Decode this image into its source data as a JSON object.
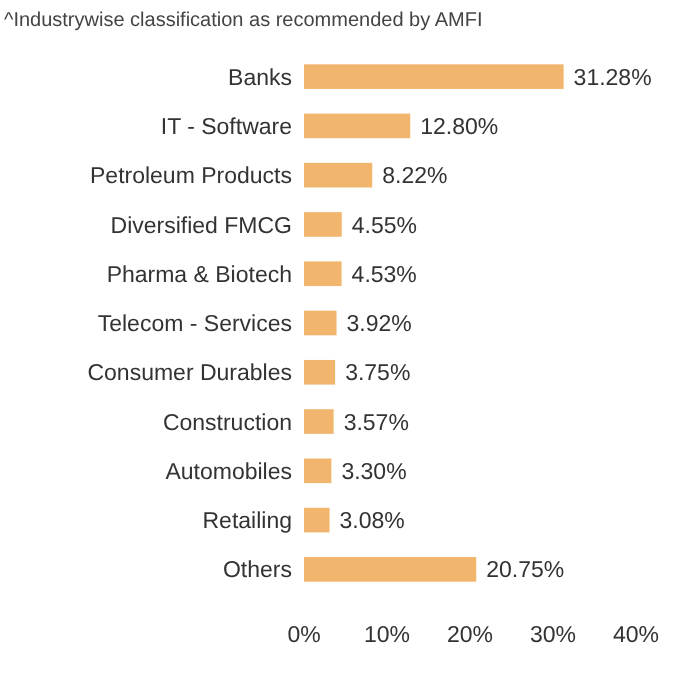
{
  "chart_data": {
    "type": "bar",
    "orientation": "horizontal",
    "title": "^Industrywise classification as recommended by AMFI",
    "categories": [
      "Banks",
      "IT - Software",
      "Petroleum Products",
      "Diversified FMCG",
      "Pharma & Biotech",
      "Telecom - Services",
      "Consumer Durables",
      "Construction",
      "Automobiles",
      "Retailing",
      "Others"
    ],
    "values": [
      31.28,
      12.8,
      8.22,
      4.55,
      4.53,
      3.92,
      3.75,
      3.57,
      3.3,
      3.08,
      20.75
    ],
    "value_labels": [
      "31.28%",
      "12.80%",
      "8.22%",
      "4.55%",
      "4.53%",
      "3.92%",
      "3.75%",
      "3.57%",
      "3.30%",
      "3.08%",
      "20.75%"
    ],
    "color": "#f2b56e",
    "xlim": [
      0,
      40
    ],
    "xticks": [
      {
        "value": 0,
        "label": "0%"
      },
      {
        "value": 10,
        "label": "10%"
      },
      {
        "value": 20,
        "label": "20%"
      },
      {
        "value": 30,
        "label": "30%"
      },
      {
        "value": 40,
        "label": "40%"
      }
    ],
    "grid": false
  }
}
